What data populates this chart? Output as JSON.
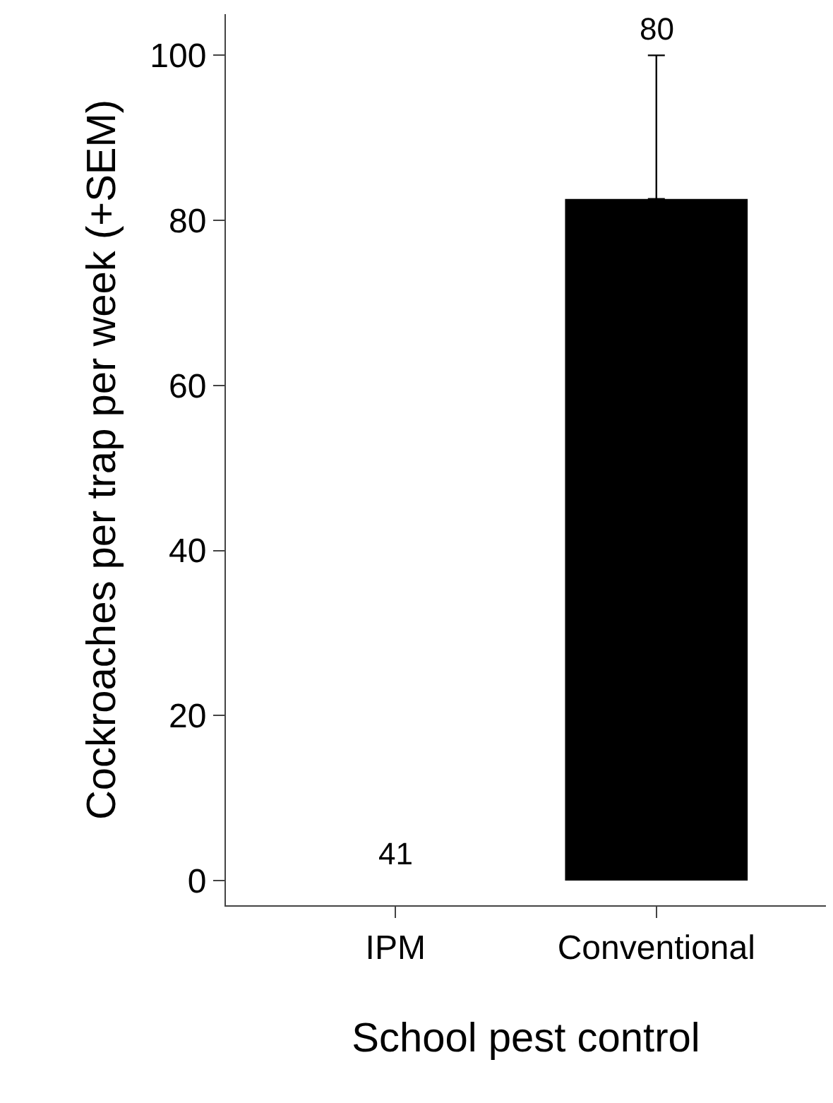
{
  "chart_data": {
    "type": "bar",
    "xlabel": "School pest control",
    "ylabel": "Cockroaches per trap per week (+SEM)",
    "categories": [
      "IPM",
      "Conventional"
    ],
    "series": [
      {
        "color": "#000000",
        "values": [
          0,
          82.6
        ],
        "errors": [
          null,
          [
            82.6,
            100
          ]
        ]
      }
    ],
    "annotations": [
      "41",
      "80"
    ],
    "ylim": [
      -3,
      105
    ],
    "yticks": [
      0,
      20,
      40,
      60,
      80,
      100
    ]
  }
}
